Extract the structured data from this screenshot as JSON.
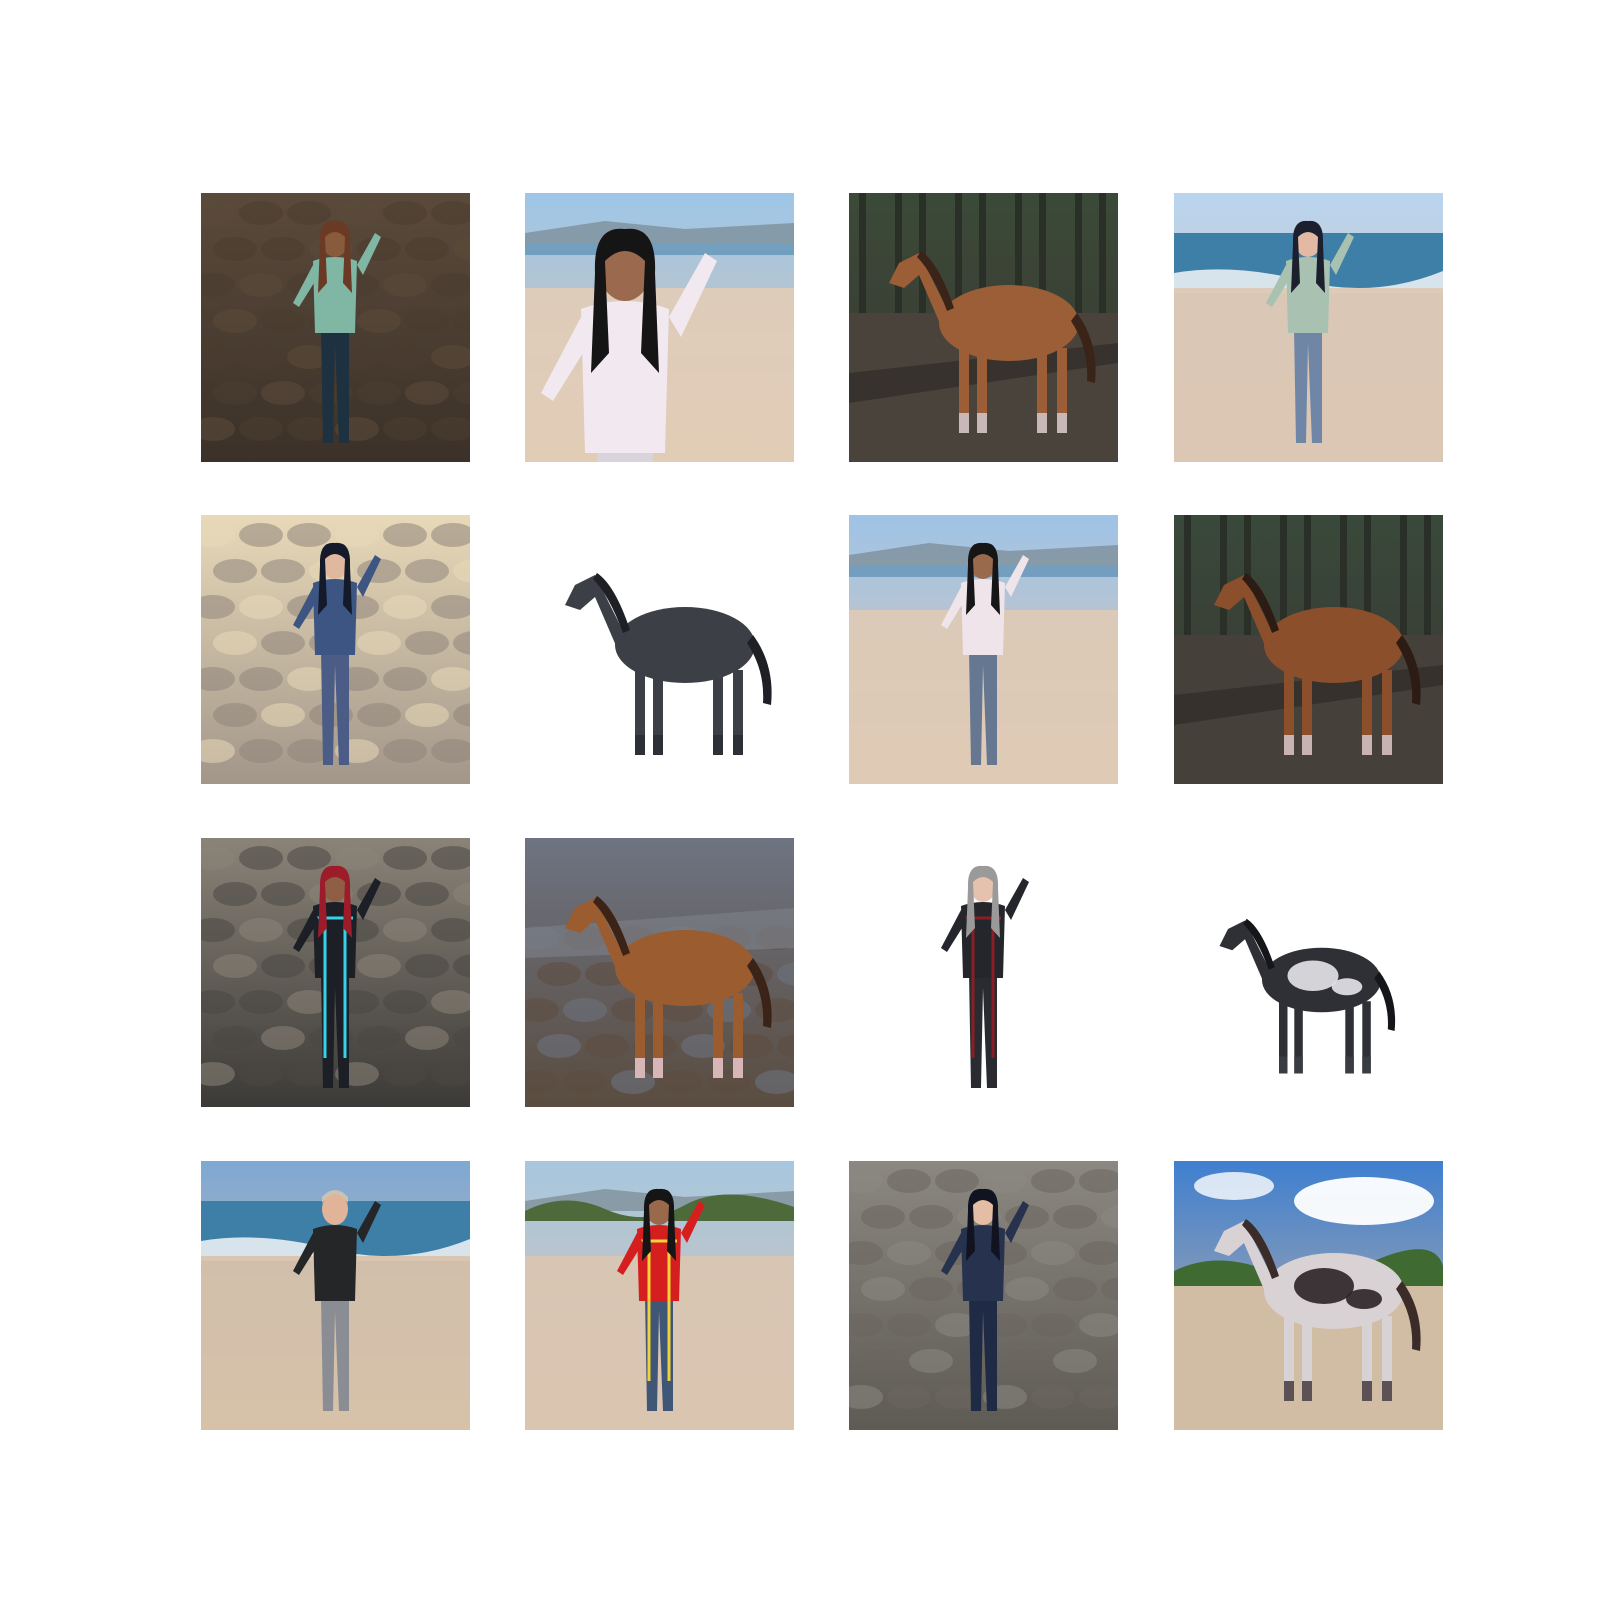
{
  "grid": {
    "rows": 4,
    "columns": 4,
    "tiles": [
      {
        "row": 1,
        "col": 1,
        "subject": "woman",
        "scene": "rocky-hillside",
        "colors": {
          "bg_top": "#5b4a3b",
          "bg_bottom": "#3b3128",
          "ground": "#4a3d30",
          "top": "#7fb7a4",
          "bottom": "#1d3140",
          "hair": "#6b3a25",
          "skin": "#8a5a3c"
        }
      },
      {
        "row": 1,
        "col": 2,
        "subject": "woman",
        "scene": "beach-closeup",
        "colors": {
          "bg_top": "#9ec6e8",
          "bg_bottom": "#d8c2ad",
          "ground": "#e2cdb7",
          "top": "#f1e9ef",
          "bottom": "#d9d4dc",
          "hair": "#151515",
          "skin": "#9b6a4e"
        }
      },
      {
        "row": 1,
        "col": 3,
        "subject": "horse",
        "scene": "forest",
        "colors": {
          "bg_top": "#3b4a38",
          "bg_bottom": "#3a3631",
          "ground": "#4a433c",
          "body": "#9c5e36",
          "mane": "#3a2418",
          "legs": "#c9b8b8"
        }
      },
      {
        "row": 1,
        "col": 4,
        "subject": "woman",
        "scene": "beach-shore",
        "colors": {
          "bg_top": "#b9d4ef",
          "bg_bottom": "#d8c5b0",
          "ground": "#dcc7b2",
          "top": "#a9c1b0",
          "bottom": "#6f86a6",
          "hair": "#1c1f2e",
          "skin": "#e3b9a3"
        }
      },
      {
        "row": 2,
        "col": 1,
        "subject": "woman",
        "scene": "stone-ruins",
        "colors": {
          "bg_top": "#e8d9b8",
          "bg_bottom": "#a2968a",
          "ground": "#8f857b",
          "top": "#3d5583",
          "bottom": "#4b5c86",
          "hair": "#141a2a",
          "skin": "#e0b89f"
        }
      },
      {
        "row": 2,
        "col": 2,
        "subject": "horse",
        "scene": "white-background",
        "colors": {
          "bg_top": "#ffffff",
          "bg_bottom": "#ffffff",
          "ground": "#ffffff",
          "body": "#3d3f47",
          "mane": "#1f2026",
          "legs": "#2e3037"
        }
      },
      {
        "row": 2,
        "col": 3,
        "subject": "woman",
        "scene": "beach-wide",
        "colors": {
          "bg_top": "#9fc3e6",
          "bg_bottom": "#dcc7b3",
          "ground": "#dfcab5",
          "top": "#eee4ea",
          "bottom": "#657791",
          "hair": "#161616",
          "skin": "#9a6a4d"
        }
      },
      {
        "row": 2,
        "col": 4,
        "subject": "horse",
        "scene": "forest",
        "colors": {
          "bg_top": "#39493a",
          "bg_bottom": "#3a3631",
          "ground": "#46403a",
          "body": "#8b4f2c",
          "mane": "#2d1c14",
          "legs": "#c8b3b0"
        }
      },
      {
        "row": 3,
        "col": 1,
        "subject": "woman",
        "scene": "stone-ruins-debris",
        "colors": {
          "bg_top": "#8a8378",
          "bg_bottom": "#3c3a37",
          "ground": "#4a4744",
          "top": "#1c1f26",
          "bottom": "#1c1f26",
          "hair": "#9c1c2a",
          "skin": "#8f5f45",
          "accent": "#35d2e8"
        }
      },
      {
        "row": 3,
        "col": 2,
        "subject": "horse",
        "scene": "rocky-shore",
        "colors": {
          "bg_top": "#6e7482",
          "bg_bottom": "#5a4c40",
          "ground": "#5c4d40",
          "body": "#9b5c30",
          "mane": "#3b2417",
          "legs": "#d6b6b6"
        }
      },
      {
        "row": 3,
        "col": 3,
        "subject": "woman",
        "scene": "white-background",
        "colors": {
          "bg_top": "#ffffff",
          "bg_bottom": "#ffffff",
          "ground": "#ffffff",
          "top": "#24262c",
          "bottom": "#2a2b30",
          "hair": "#9a9a9a",
          "skin": "#e4c2ae",
          "accent": "#8a1e25"
        }
      },
      {
        "row": 3,
        "col": 4,
        "subject": "horse",
        "scene": "white-background",
        "colors": {
          "bg_top": "#ffffff",
          "bg_bottom": "#ffffff",
          "ground": "#ffffff",
          "body": "#2e3036",
          "mane": "#15161a",
          "legs": "#3a3c43",
          "patch": "#e6e6ea"
        }
      },
      {
        "row": 4,
        "col": 1,
        "subject": "man",
        "scene": "beach-shore",
        "colors": {
          "bg_top": "#7fa8d4",
          "bg_bottom": "#d3bea6",
          "ground": "#d7c1a8",
          "top": "#242628",
          "bottom": "#8a8d93",
          "hair": "#c8c3b3",
          "skin": "#e1b49a"
        }
      },
      {
        "row": 4,
        "col": 2,
        "subject": "woman",
        "scene": "beach-brush",
        "colors": {
          "bg_top": "#a7c6df",
          "bg_bottom": "#d8c3ae",
          "ground": "#dac5b0",
          "top": "#d51f1f",
          "bottom": "#3f5676",
          "hair": "#151515",
          "skin": "#9a694c",
          "accent": "#f2d23a"
        }
      },
      {
        "row": 4,
        "col": 3,
        "subject": "woman",
        "scene": "stone-ruins-blur",
        "colors": {
          "bg_top": "#8b8882",
          "bg_bottom": "#5e5a54",
          "ground": "#6b665f",
          "top": "#27324e",
          "bottom": "#1f2a44",
          "hair": "#111420",
          "skin": "#e5bda4"
        }
      },
      {
        "row": 4,
        "col": 4,
        "subject": "horse",
        "scene": "sunny-field",
        "colors": {
          "bg_top": "#3f7fd0",
          "bg_bottom": "#cdb79d",
          "ground": "#d1bca4",
          "body": "#d9d2d4",
          "mane": "#3b2c2a",
          "legs": "#5c5256",
          "patch": "#2a2226"
        }
      }
    ]
  }
}
